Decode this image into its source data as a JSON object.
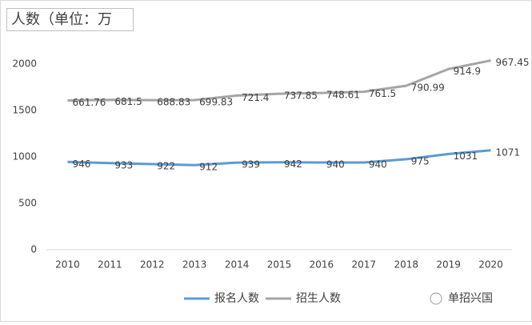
{
  "chart_data": {
    "type": "stacked-line",
    "title": "人数（单位：万",
    "categories": [
      "2010",
      "2011",
      "2012",
      "2013",
      "2014",
      "2015",
      "2016",
      "2017",
      "2018",
      "2019",
      "2020"
    ],
    "series": [
      {
        "name": "报名人数",
        "color": "#5b9bd5",
        "values": [
          946,
          933,
          922,
          912,
          939,
          942,
          940,
          940,
          975,
          1031,
          1071
        ]
      },
      {
        "name": "招生人数",
        "color": "#a5a5a5",
        "values": [
          661.76,
          681.5,
          688.83,
          699.83,
          721.4,
          737.85,
          748.61,
          761.5,
          790.99,
          914.9,
          967.45
        ]
      }
    ],
    "ylim": [
      0,
      2500
    ],
    "yticks": [
      0,
      500,
      1000,
      1500,
      2000
    ],
    "grid": false,
    "legend": "bottom",
    "watermark": "单招兴国"
  }
}
